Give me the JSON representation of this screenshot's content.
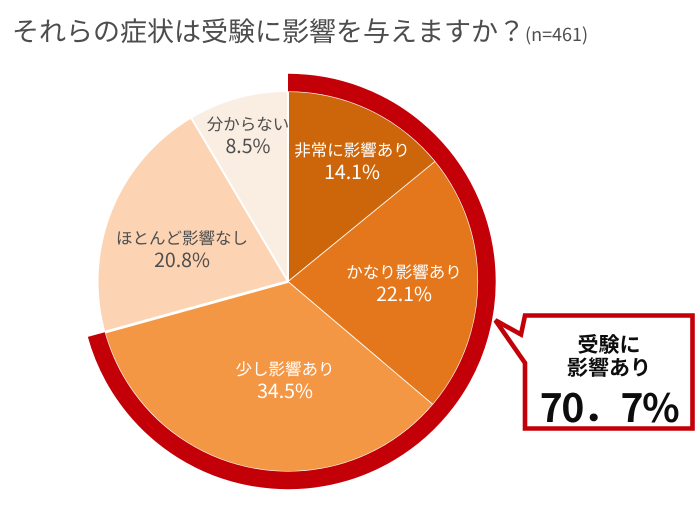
{
  "title": {
    "main": "それらの症状は受験に影響を与えますか？",
    "sample": "(n=461)"
  },
  "chart_data": {
    "type": "pie",
    "title": "それらの症状は受験に影響を与えますか？",
    "sample_size_label": "(n=461)",
    "sample_size": 461,
    "start_angle_deg": 0,
    "direction": "clockwise",
    "legend_position": "labels-on-slices",
    "slices": [
      {
        "label": "非常に影響あり",
        "value": 14.1,
        "pct_text": "14.1%",
        "color": "#cd660a",
        "text_color": "#ffffff"
      },
      {
        "label": "かなり影響あり",
        "value": 22.1,
        "pct_text": "22.1%",
        "color": "#e4771b",
        "text_color": "#ffffff"
      },
      {
        "label": "少し影響あり",
        "value": 34.5,
        "pct_text": "34.5%",
        "color": "#f49745",
        "text_color": "#ffffff"
      },
      {
        "label": "ほとんど影響なし",
        "value": 20.8,
        "pct_text": "20.8%",
        "color": "#fcd4b4",
        "text_color": "#4e4e4e"
      },
      {
        "label": "分からない",
        "value": 8.5,
        "pct_text": "8.5%",
        "color": "#faede1",
        "text_color": "#4e4e4e"
      }
    ],
    "highlight": {
      "label": "受験に影響あり",
      "lines": [
        "受験に",
        "影響あり"
      ],
      "value": 70.7,
      "value_text": "70．7%",
      "covers_slices": [
        "非常に影響あり",
        "かなり影響あり",
        "少し影響あり"
      ],
      "ring_color": "#c30008",
      "callout_border_color": "#c30008",
      "callout_fill": "#ffffff",
      "text_color": "#0d0d0d"
    },
    "colors": {
      "background": "#ffffff",
      "title_text": "#4d4d4d",
      "separator": "#ffffff"
    }
  }
}
